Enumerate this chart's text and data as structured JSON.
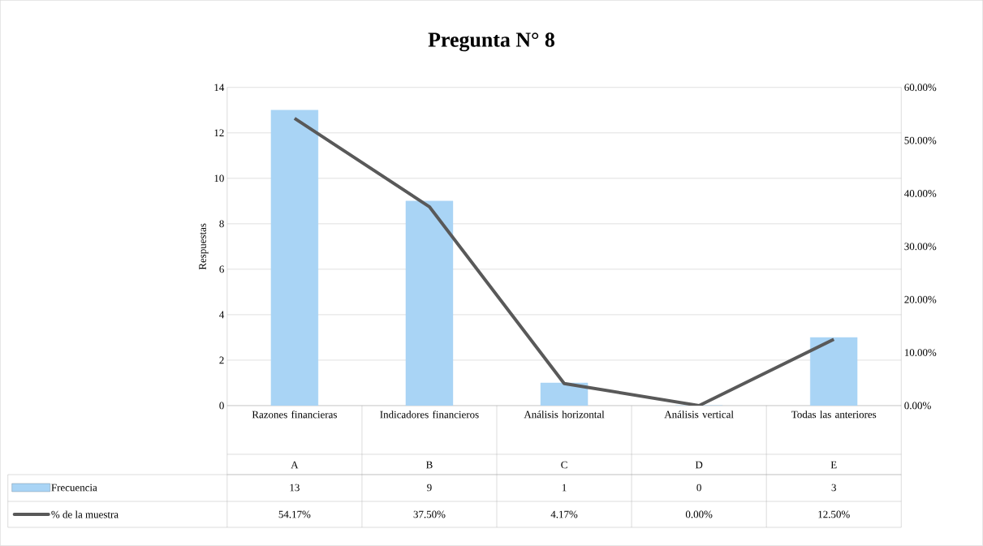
{
  "chart_data": {
    "type": "bar",
    "title": "Pregunta N° 8",
    "ylabel": "Respuestas",
    "categories": [
      "Razones financieras",
      "Indicadores financieros",
      "Análisis horizontal",
      "Análisis vertical",
      "Todas las anteriores"
    ],
    "annotations": [
      "A",
      "B",
      "C",
      "D",
      "E"
    ],
    "series": [
      {
        "name": "Frecuencia",
        "color": "#a9d4f5",
        "values": [
          13,
          9,
          1,
          0,
          3
        ],
        "value_labels": [
          "13",
          "9",
          "1",
          "0",
          "3"
        ]
      },
      {
        "name": "% de la muestra",
        "type": "line",
        "axis": "y2",
        "color": "#595959",
        "values": [
          54.17,
          37.5,
          4.17,
          0,
          12.5
        ],
        "value_labels": [
          "54.17%",
          "37.50%",
          "4.17%",
          "0.00%",
          "12.50%"
        ]
      }
    ],
    "ylim": [
      0,
      14
    ],
    "yticks": [
      0,
      2,
      4,
      6,
      8,
      10,
      12,
      14
    ],
    "y2lim": [
      0,
      60
    ],
    "y2ticks": [
      {
        "value": 0,
        "label": "0.00%"
      },
      {
        "value": 10,
        "label": "10.00%"
      },
      {
        "value": 20,
        "label": "20.00%"
      },
      {
        "value": 30,
        "label": "30.00%"
      },
      {
        "value": 40,
        "label": "40.00%"
      },
      {
        "value": 50,
        "label": "50.00%"
      },
      {
        "value": 60,
        "label": "60.00%"
      }
    ],
    "grid": "y",
    "legend": "bottom left",
    "marker": "none",
    "line_style": "solid"
  }
}
